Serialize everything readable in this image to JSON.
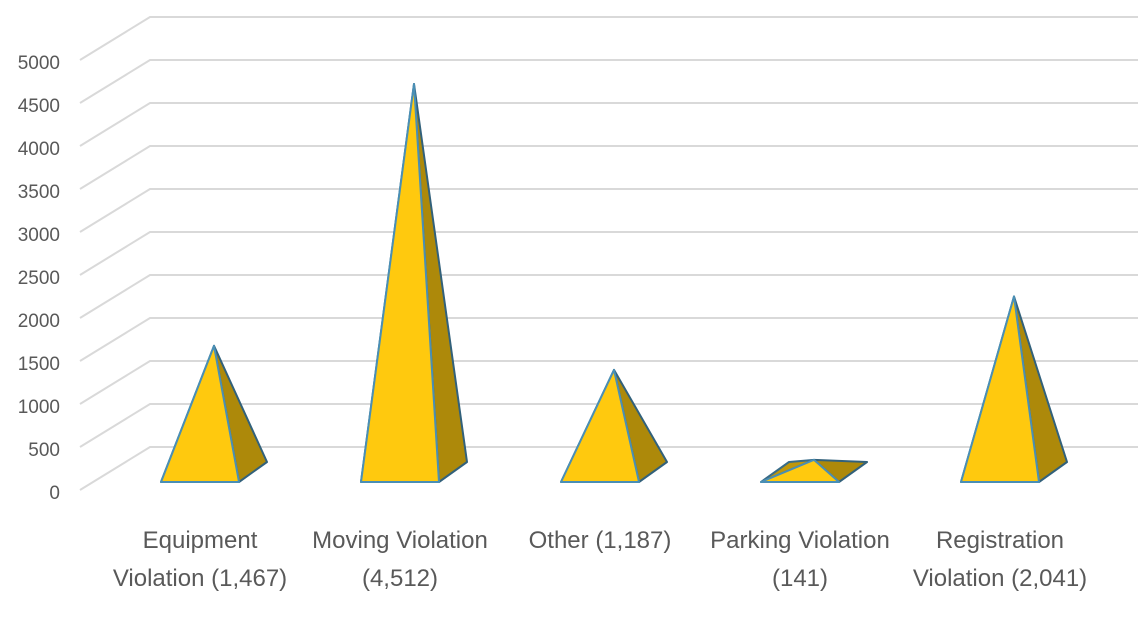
{
  "chart_data": {
    "type": "pyramid3d",
    "categories": [
      "Equipment Violation (1,467)",
      "Moving Violation (4,512)",
      "Other (1,187)",
      "Parking Violation (141)",
      "Registration Violation (2,041)"
    ],
    "values": [
      1467,
      4512,
      1187,
      141,
      2041
    ],
    "color": "#FFC90E",
    "ylim": [
      0,
      5000
    ],
    "yticks": [
      0,
      500,
      1000,
      1500,
      2000,
      2500,
      3000,
      3500,
      4000,
      4500,
      5000
    ],
    "grid": true
  }
}
